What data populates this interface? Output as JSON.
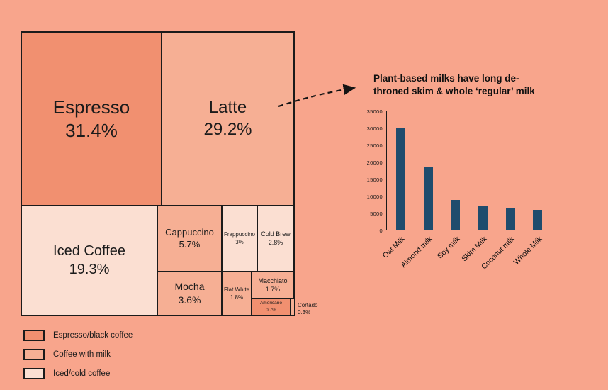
{
  "colors": {
    "background": "#F8A58C",
    "espresso_black": "#F19070",
    "coffee_with_milk": "#F6AF94",
    "iced_cold": "#FBDFD2",
    "border": "#1B1B1B",
    "text": "#1B1B1B",
    "bar_fill": "#1F4C6D"
  },
  "chart_data": [
    {
      "type": "treemap",
      "title": "",
      "items": [
        {
          "name": "Espresso",
          "value": 31.4,
          "pct": "31.4%",
          "category": "espresso_black"
        },
        {
          "name": "Latte",
          "value": 29.2,
          "pct": "29.2%",
          "category": "coffee_with_milk"
        },
        {
          "name": "Iced Coffee",
          "value": 19.3,
          "pct": "19.3%",
          "category": "iced_cold"
        },
        {
          "name": "Cappuccino",
          "value": 5.7,
          "pct": "5.7%",
          "category": "coffee_with_milk"
        },
        {
          "name": "Mocha",
          "value": 3.6,
          "pct": "3.6%",
          "category": "coffee_with_milk"
        },
        {
          "name": "Frappuccino",
          "value": 3.0,
          "pct": "3%",
          "category": "iced_cold"
        },
        {
          "name": "Cold Brew",
          "value": 2.8,
          "pct": "2.8%",
          "category": "iced_cold"
        },
        {
          "name": "Flat White",
          "value": 1.8,
          "pct": "1.8%",
          "category": "coffee_with_milk"
        },
        {
          "name": "Macchiato",
          "value": 1.7,
          "pct": "1.7%",
          "category": "coffee_with_milk"
        },
        {
          "name": "Americano",
          "value": 0.7,
          "pct": "0.7%",
          "category": "espresso_black"
        },
        {
          "name": "Cortado",
          "value": 0.3,
          "pct": "0.3%",
          "category": "coffee_with_milk"
        }
      ],
      "legend_items": [
        {
          "label": "Espresso/black coffee",
          "category": "espresso_black"
        },
        {
          "label": "Coffee with milk",
          "category": "coffee_with_milk"
        },
        {
          "label": "Iced/cold coffee",
          "category": "iced_cold"
        }
      ]
    },
    {
      "type": "bar",
      "title": "Plant-based milks have long de-throned skim & whole ‘regular’ milk",
      "title_lines": [
        "Plant-based milks have long de-",
        "throned skim & whole ‘regular’ milk"
      ],
      "categories": [
        "Oat Milk",
        "Almond milk",
        "Soy milk",
        "Skim Milk",
        "Coconut milk",
        "Whole Milk"
      ],
      "values": [
        30000,
        18500,
        8800,
        7000,
        6500,
        5900
      ],
      "xlabel": "",
      "ylabel": "",
      "ylim": [
        0,
        35000
      ],
      "yticks": [
        0,
        5000,
        10000,
        15000,
        20000,
        25000,
        30000,
        35000
      ],
      "grid": false,
      "legend_position": "none"
    }
  ]
}
